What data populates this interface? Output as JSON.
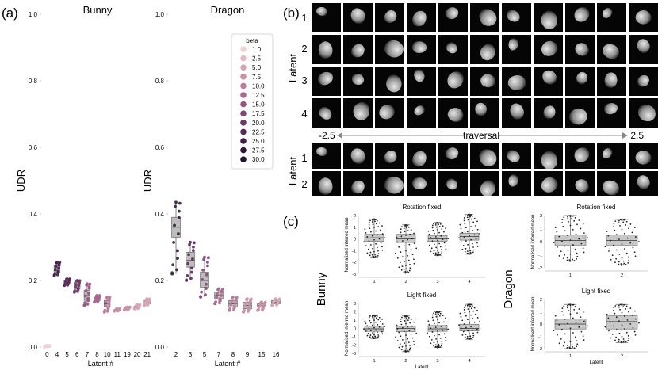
{
  "panel_labels": {
    "a": "(a)",
    "b": "(b)",
    "c": "(c)"
  },
  "panel_a": {
    "ylabel": "UDR",
    "xlabel": "Latent #",
    "yticks": [
      "0.0",
      "0.2",
      "0.4",
      "0.6",
      "0.8",
      "1.0"
    ],
    "legend": {
      "title": "beta",
      "entries": [
        "1.0",
        "2.5",
        "5.0",
        "7.5",
        "10.0",
        "12.5",
        "15.0",
        "17.5",
        "20.0",
        "22.5",
        "25.0",
        "27.5",
        "30.0"
      ],
      "colors": [
        "#ecd3cf",
        "#e2bcc0",
        "#d7a5b3",
        "#c98fa6",
        "#bb7a9a",
        "#aa668e",
        "#975482",
        "#824474",
        "#6d3766",
        "#582b57",
        "#442048",
        "#33183a",
        "#24112c"
      ]
    }
  },
  "chart_data": [
    {
      "type": "box",
      "title": "Bunny",
      "ylabel": "UDR",
      "xlabel": "Latent #",
      "ylim": [
        0,
        1.0
      ],
      "categories": [
        "0",
        "4",
        "5",
        "6",
        "7",
        "8",
        "10",
        "11",
        "19",
        "20",
        "21"
      ],
      "medians": [
        0.0,
        0.235,
        0.195,
        0.185,
        0.155,
        0.145,
        0.13,
        0.11,
        0.115,
        0.12,
        0.135
      ],
      "q1": [
        0.0,
        0.225,
        0.19,
        0.175,
        0.14,
        0.14,
        0.12,
        0.11,
        0.115,
        0.118,
        0.13
      ],
      "q3": [
        0.003,
        0.245,
        0.2,
        0.195,
        0.17,
        0.15,
        0.14,
        0.113,
        0.118,
        0.123,
        0.14
      ],
      "whisker_low": [
        0.0,
        0.215,
        0.185,
        0.165,
        0.125,
        0.135,
        0.105,
        0.108,
        0.112,
        0.115,
        0.125
      ],
      "whisker_high": [
        0.005,
        0.255,
        0.205,
        0.2,
        0.19,
        0.155,
        0.15,
        0.115,
        0.12,
        0.127,
        0.145
      ],
      "beta_index": [
        0,
        10,
        9,
        8,
        6,
        5,
        4,
        3,
        3,
        2,
        2
      ]
    },
    {
      "type": "box",
      "title": "Dragon",
      "ylabel": "UDR",
      "xlabel": "Latent #",
      "ylim": [
        0,
        1.0
      ],
      "categories": [
        "2",
        "3",
        "5",
        "7",
        "8",
        "9",
        "15",
        "16"
      ],
      "medians": [
        0.36,
        0.26,
        0.2,
        0.155,
        0.13,
        0.125,
        0.125,
        0.135
      ],
      "q1": [
        0.33,
        0.24,
        0.18,
        0.145,
        0.12,
        0.115,
        0.12,
        0.13
      ],
      "q3": [
        0.39,
        0.285,
        0.225,
        0.165,
        0.14,
        0.135,
        0.13,
        0.14
      ],
      "whisker_low": [
        0.22,
        0.2,
        0.15,
        0.13,
        0.11,
        0.105,
        0.11,
        0.125
      ],
      "whisker_high": [
        0.435,
        0.315,
        0.27,
        0.175,
        0.15,
        0.145,
        0.135,
        0.145
      ],
      "beta_index": [
        11,
        9,
        7,
        5,
        4,
        3,
        3,
        2
      ]
    },
    {
      "type": "box",
      "title": "Rotation fixed",
      "group": "Bunny",
      "ylabel": "Normalised inferred mean",
      "categories": [
        "1",
        "2",
        "3",
        "4"
      ],
      "medians": [
        0.1,
        0.0,
        0.0,
        0.2
      ],
      "q1": [
        -0.2,
        -0.3,
        -0.2,
        -0.1
      ],
      "q3": [
        0.4,
        0.4,
        0.3,
        0.5
      ],
      "whisker_low": [
        -1.6,
        -2.9,
        -1.4,
        -1.3
      ],
      "whisker_high": [
        1.7,
        1.2,
        1.4,
        2.1
      ],
      "ylim": [
        -3,
        2
      ],
      "yticks": [
        -3,
        -2,
        -1,
        0,
        1,
        2
      ]
    },
    {
      "type": "box",
      "title": "Light fixed",
      "group": "Bunny",
      "ylabel": "Normalised inferred mean",
      "xlabel": "Latent",
      "categories": [
        "1",
        "2",
        "3",
        "4"
      ],
      "medians": [
        -0.05,
        0.0,
        -0.05,
        0.0
      ],
      "q1": [
        -0.35,
        -0.4,
        -0.35,
        -0.3
      ],
      "q3": [
        0.3,
        0.25,
        0.35,
        0.5
      ],
      "whisker_low": [
        -1.2,
        -2.8,
        -2.3,
        -1.3
      ],
      "whisker_high": [
        1.6,
        1.5,
        2.0,
        2.9
      ],
      "ylim": [
        -3,
        3
      ],
      "yticks": [
        -3,
        -2,
        -1,
        0,
        1,
        2,
        3
      ]
    },
    {
      "type": "box",
      "title": "Rotation fixed",
      "group": "Dragon",
      "ylabel": "Normalised inferred mean",
      "categories": [
        "1",
        "2"
      ],
      "medians": [
        0.1,
        0.1
      ],
      "q1": [
        -0.3,
        -0.3
      ],
      "q3": [
        0.5,
        0.5
      ],
      "whisker_low": [
        -1.5,
        -1.8
      ],
      "whisker_high": [
        2.0,
        1.7
      ],
      "ylim": [
        -2,
        2
      ],
      "yticks": [
        -2,
        -1,
        0,
        1,
        2
      ]
    },
    {
      "type": "box",
      "title": "Light fixed",
      "group": "Dragon",
      "ylabel": "Normalised inferred mean",
      "xlabel": "Latent",
      "categories": [
        "1",
        "2"
      ],
      "medians": [
        0.0,
        0.2
      ],
      "q1": [
        -0.4,
        -0.4
      ],
      "q3": [
        0.4,
        0.7
      ],
      "whisker_low": [
        -2.0,
        -1.5
      ],
      "whisker_high": [
        1.6,
        1.6
      ],
      "ylim": [
        -2,
        2
      ],
      "yticks": [
        -2,
        -1,
        0,
        1,
        2
      ]
    }
  ],
  "panel_b": {
    "latent_label": "Latent",
    "bunny_rows": [
      "1",
      "2",
      "3",
      "4"
    ],
    "dragon_rows": [
      "1",
      "2"
    ],
    "traversal_label": "traversal",
    "traversal_min": "-2.5",
    "traversal_max": "2.5"
  },
  "panel_c": {
    "bunny_label": "Bunny",
    "dragon_label": "Dragon"
  }
}
